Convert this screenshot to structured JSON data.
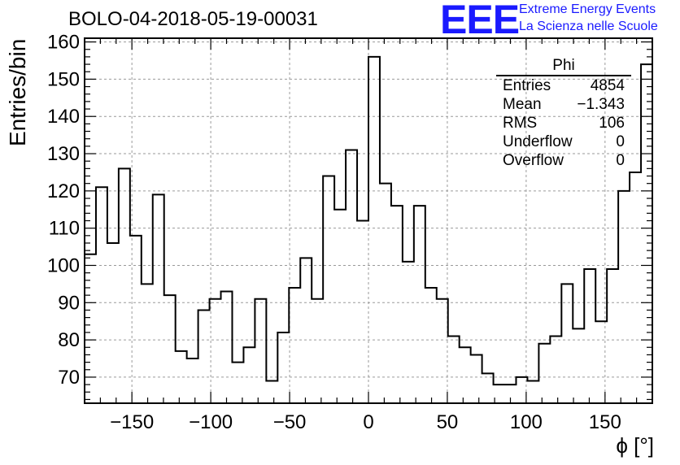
{
  "title": "BOLO-04-2018-05-19-00031",
  "logo": {
    "mark": "EEE",
    "line1": "Extreme Energy Events",
    "line2": "La Scienza nelle Scuole"
  },
  "stats": {
    "title": "Phi",
    "rows": [
      {
        "label": "Entries",
        "value": "4854"
      },
      {
        "label": "Mean",
        "value": "−1.343"
      },
      {
        "label": "RMS",
        "value": "106"
      },
      {
        "label": "Underflow",
        "value": "0"
      },
      {
        "label": "Overflow",
        "value": "0"
      }
    ]
  },
  "colors": {
    "line": "#000000",
    "grid": "#9a9a9a",
    "logo": "#1a1aff"
  },
  "chart_data": {
    "type": "histogram",
    "xlabel": "ϕ [°]",
    "ylabel": "Entries/bin",
    "xlim": [
      -180,
      180
    ],
    "ylim": [
      63,
      161
    ],
    "x_ticks": [
      -150,
      -100,
      -50,
      0,
      50,
      100,
      150
    ],
    "x_tick_labels": [
      "−150",
      "−100",
      "−50",
      "0",
      "50",
      "100",
      "150"
    ],
    "y_ticks": [
      70,
      80,
      90,
      100,
      110,
      120,
      130,
      140,
      150,
      160
    ],
    "grid": true,
    "bin_width": 7.2,
    "values": [
      103,
      121,
      106,
      126,
      108,
      95,
      119,
      92,
      77,
      75,
      88,
      91,
      93,
      74,
      78,
      91,
      69,
      82,
      94,
      102,
      91,
      124,
      115,
      131,
      112,
      156,
      122,
      116,
      101,
      116,
      94,
      91,
      81,
      78,
      76,
      71,
      68,
      68,
      70,
      69,
      79,
      81,
      95,
      83,
      99,
      85,
      99,
      120,
      125,
      154
    ]
  }
}
